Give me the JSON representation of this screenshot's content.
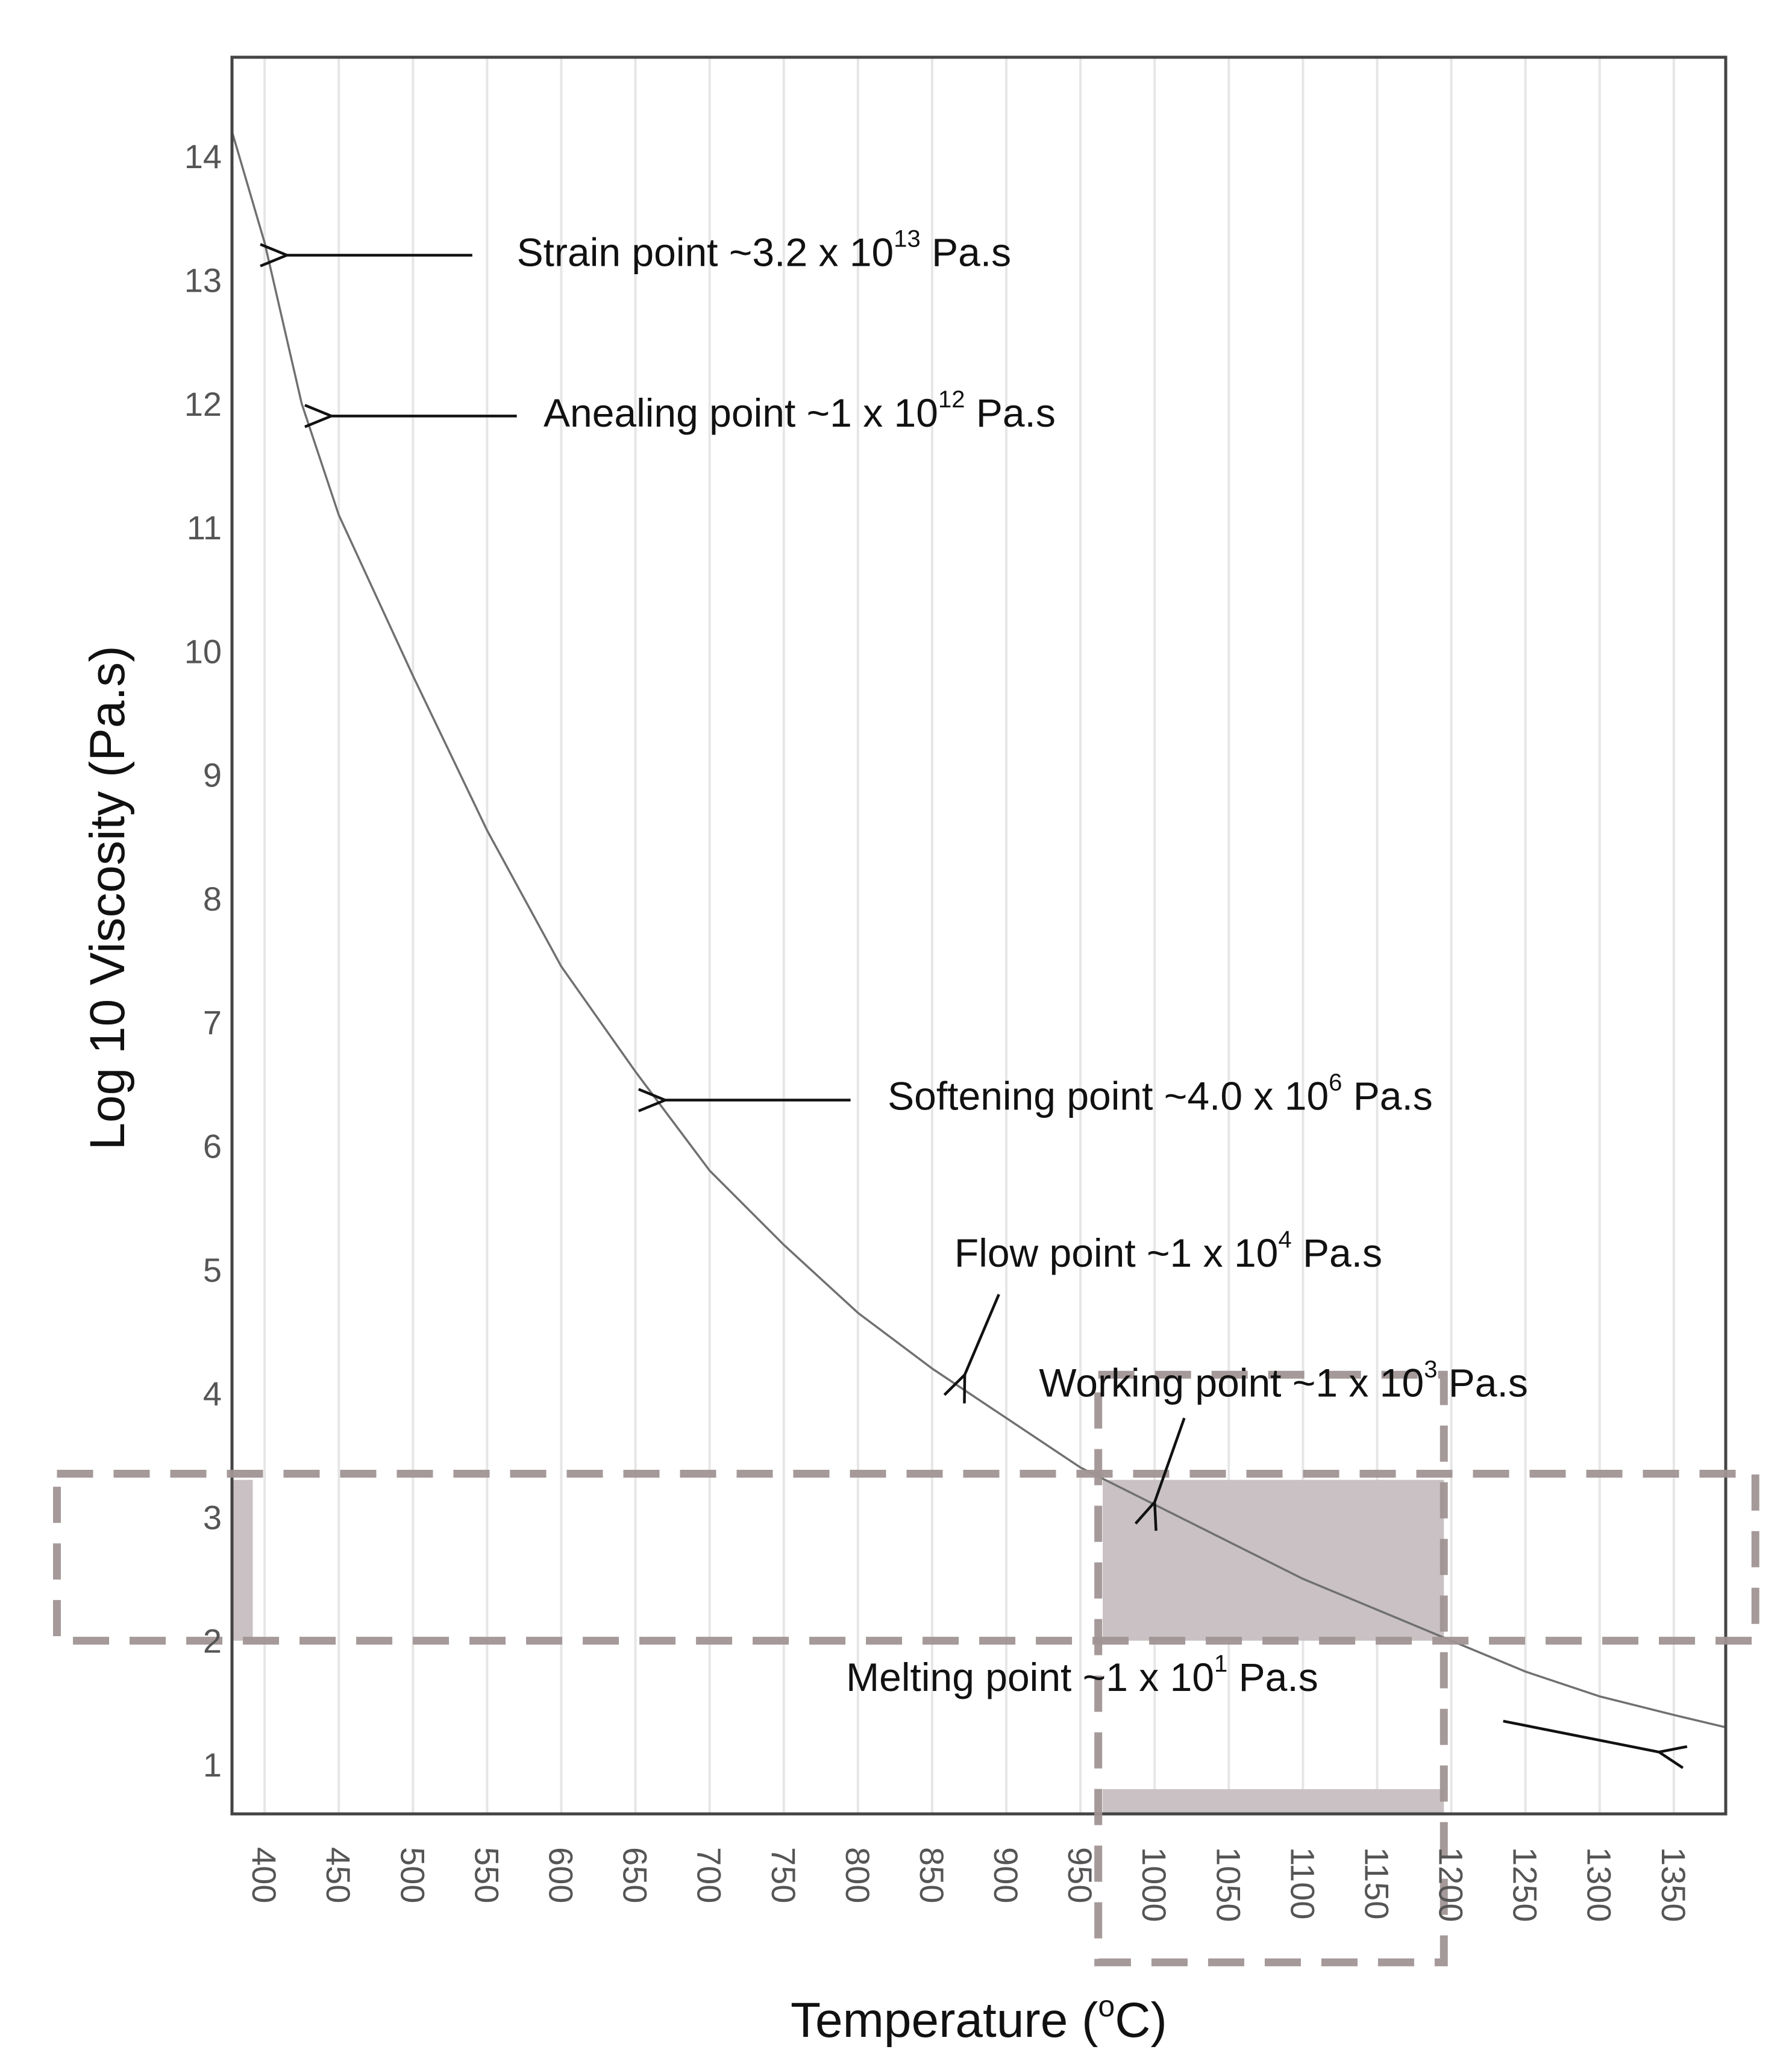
{
  "chart_data": {
    "type": "line",
    "title": "",
    "xlabel_main": "Temperature (",
    "xlabel_sup": "o",
    "xlabel_end": "C)",
    "ylabel": "Log 10 Viscosity (Pa.s)",
    "xlim": [
      378,
      1385
    ],
    "ylim": [
      0.6,
      14.8
    ],
    "grid": "vertical",
    "x_ticks": [
      400,
      450,
      500,
      550,
      600,
      650,
      700,
      750,
      800,
      850,
      900,
      950,
      1000,
      1050,
      1100,
      1150,
      1200,
      1250,
      1300,
      1350
    ],
    "x_tick_labels": [
      "400",
      "450",
      "500",
      "550",
      "600",
      "650",
      "700",
      "750",
      "800",
      "850",
      "900",
      "950",
      "1000",
      "1050",
      "1100",
      "1150",
      "1200",
      "1250",
      "1300",
      "1350"
    ],
    "y_ticks": [
      1,
      2,
      3,
      4,
      5,
      6,
      7,
      8,
      9,
      10,
      11,
      12,
      13,
      14
    ],
    "y_tick_labels": [
      "1",
      "2",
      "3",
      "4",
      "5",
      "6",
      "7",
      "8",
      "9",
      "10",
      "11",
      "12",
      "13",
      "14"
    ],
    "series": [
      {
        "name": "viscosity",
        "color": "#707070",
        "x": [
          378,
          400,
          425,
          450,
          500,
          550,
          600,
          650,
          700,
          750,
          800,
          850,
          900,
          950,
          1000,
          1050,
          1100,
          1150,
          1200,
          1250,
          1300,
          1350,
          1385
        ],
        "y": [
          14.2,
          13.3,
          12.0,
          11.1,
          9.8,
          8.55,
          7.45,
          6.6,
          5.8,
          5.2,
          4.65,
          4.2,
          3.8,
          3.4,
          3.1,
          2.8,
          2.5,
          2.25,
          2.0,
          1.75,
          1.55,
          1.4,
          1.3
        ]
      }
    ],
    "shaded_regions": [
      {
        "name": "left-band",
        "x": [
          378,
          392
        ],
        "y": [
          2.0,
          3.3
        ],
        "color": "#c9c1c3"
      },
      {
        "name": "working-box",
        "x": [
          965,
          1195
        ],
        "y": [
          2.0,
          3.3
        ],
        "color": "#c9c1c3"
      },
      {
        "name": "temperature-band",
        "x": [
          965,
          1195
        ],
        "y": [
          0.6,
          0.8
        ],
        "color": "#c9c1c3"
      }
    ],
    "dashed_boxes": [
      {
        "name": "viscosity-range-box",
        "x": [
          260,
          1405
        ],
        "y": [
          2.0,
          3.35
        ],
        "color": "#a09394"
      },
      {
        "name": "temperature-range-box",
        "x": [
          962,
          1195
        ],
        "y": [
          -0.6,
          4.15
        ],
        "color": "#a09394"
      }
    ],
    "annotations": [
      {
        "name": "strain-point",
        "text": "Strain point ~3.2 x 10",
        "sup": "13",
        "unit": " Pa.s",
        "target": [
          415,
          13.2
        ],
        "arrow_from": [
          540,
          13.2
        ],
        "text_at": [
          570,
          13.22
        ]
      },
      {
        "name": "annealing-point",
        "text": "Anealing point ~1 x 10",
        "sup": "12",
        "unit": " Pa.s",
        "target": [
          445,
          11.9
        ],
        "arrow_from": [
          570,
          11.9
        ],
        "text_at": [
          588,
          11.92
        ]
      },
      {
        "name": "softening-point",
        "text": "Softening point ~4.0 x 10",
        "sup": "6",
        "unit": " Pa.s",
        "target": [
          670,
          6.37
        ],
        "arrow_from": [
          795,
          6.37
        ],
        "text_at": [
          820,
          6.4
        ]
      },
      {
        "name": "flow-point",
        "text": "Flow point ~1 x 10",
        "sup": "4",
        "unit": " Pa.s",
        "target": [
          872,
          4.15
        ],
        "arrow_from": [
          895,
          4.8
        ],
        "text_at": [
          865,
          5.13
        ]
      },
      {
        "name": "working-point",
        "text": "Working point ~1 x 10",
        "sup": "3",
        "unit": " Pa.s",
        "target": [
          1000,
          3.12
        ],
        "arrow_from": [
          1020,
          3.8
        ],
        "text_at": [
          922,
          4.08
        ]
      },
      {
        "name": "melting-point",
        "text": "Melting point ~1 x 10",
        "sup": "1",
        "unit": " Pa.s",
        "target": [
          1340,
          1.1
        ],
        "arrow_from": [
          1235,
          1.35
        ],
        "text_at": [
          792,
          1.7
        ]
      }
    ]
  }
}
